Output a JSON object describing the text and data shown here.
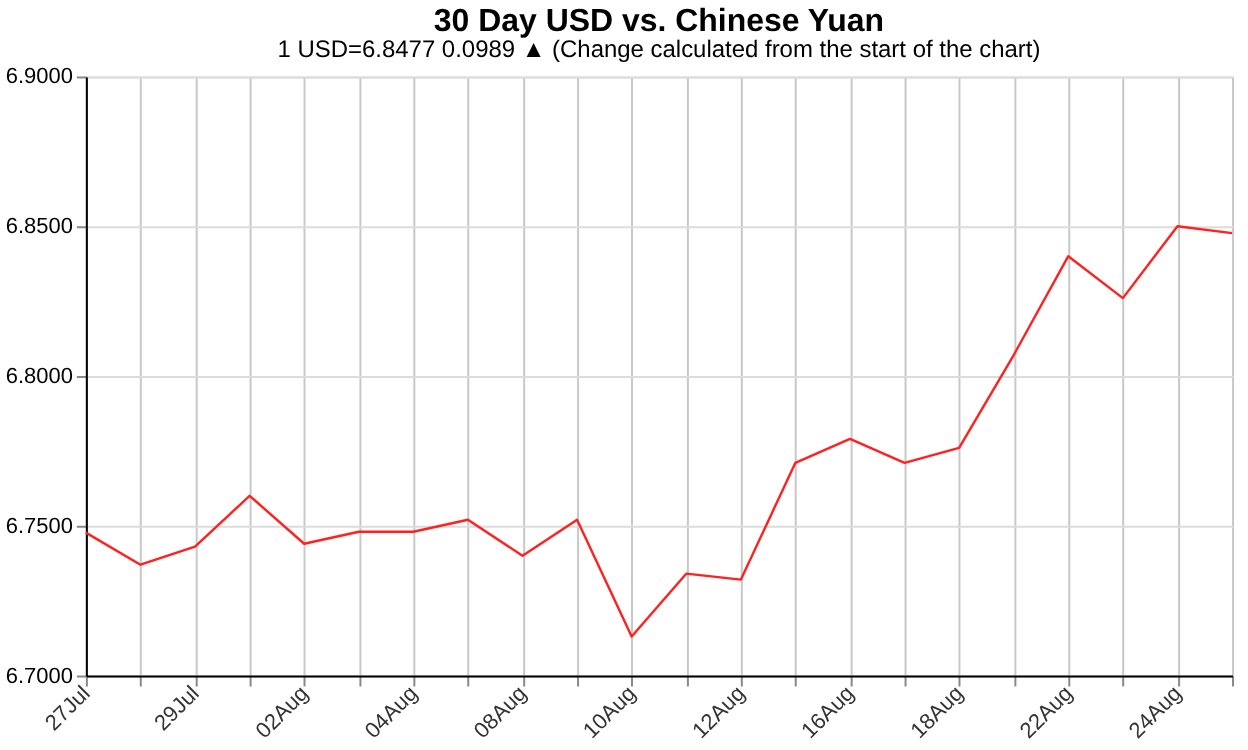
{
  "chart_data": {
    "type": "line",
    "title": "30 Day USD vs. Chinese Yuan",
    "subtitle": "1 USD=6.8477  0.0989 ▲ (Change calculated from the start of the chart)",
    "categories": [
      "27Jul",
      null,
      "29Jul",
      null,
      "02Aug",
      null,
      "04Aug",
      null,
      "08Aug",
      null,
      "10Aug",
      null,
      "12Aug",
      null,
      "16Aug",
      null,
      "18Aug",
      null,
      "22Aug",
      null,
      "24Aug",
      null
    ],
    "series": [
      {
        "color": "#ff2020",
        "values": [
          6.7477,
          6.737,
          6.743,
          6.76,
          6.744,
          6.748,
          6.748,
          6.752,
          6.74,
          6.752,
          6.713,
          6.734,
          6.732,
          6.771,
          6.779,
          6.771,
          6.776,
          6.807,
          6.84,
          6.826,
          6.85,
          6.8477
        ]
      }
    ],
    "ylim": [
      6.7,
      6.9
    ],
    "yticks": [
      {
        "value": 6.7,
        "label": "6.7000"
      },
      {
        "value": 6.75,
        "label": "6.7500"
      },
      {
        "value": 6.8,
        "label": "6.8000"
      },
      {
        "value": 6.85,
        "label": "6.8500"
      },
      {
        "value": 6.9,
        "label": "6.9000"
      }
    ],
    "grid": true,
    "marker": "none",
    "line_style": "solid"
  }
}
